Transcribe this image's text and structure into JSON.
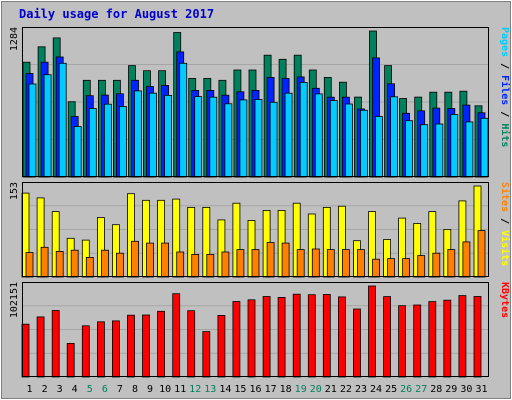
{
  "chart_data": {
    "type": "bar",
    "title": "Daily usage for August 2017",
    "days": [
      "1",
      "2",
      "3",
      "4",
      "5",
      "6",
      "7",
      "8",
      "9",
      "10",
      "11",
      "12",
      "13",
      "14",
      "15",
      "16",
      "17",
      "18",
      "19",
      "20",
      "21",
      "22",
      "23",
      "24",
      "25",
      "26",
      "27",
      "28",
      "29",
      "30",
      "31"
    ],
    "weekend_days": [
      "5",
      "6",
      "12",
      "13",
      "19",
      "20",
      "26",
      "27"
    ],
    "colors": {
      "hits": "#00805c",
      "files": "#0024ff",
      "pages": "#00ccff",
      "visits": "#ffff00",
      "sites": "#ff8000",
      "kbytes": "#ff0000",
      "weekday_tick": "#000000",
      "weekend_tick": "#00805c",
      "panel_bg": "#c0c0c0",
      "frame": "#000000",
      "grid": "#a6a6a6"
    },
    "panels": [
      {
        "id": "hits",
        "ymax_label": "1284",
        "ymax": 1284,
        "right_label": [
          {
            "text": "Pages",
            "color": "#00ccff"
          },
          {
            "text": " / ",
            "color": "#000000"
          },
          {
            "text": "Files",
            "color": "#0024ff"
          },
          {
            "text": " / ",
            "color": "#000000"
          },
          {
            "text": "Hits",
            "color": "#00805c"
          }
        ],
        "series": [
          {
            "name": "Hits",
            "color": "#00805c",
            "values": [
              1010,
              1145,
              1223,
              662,
              850,
              850,
              850,
              980,
              935,
              935,
              1271,
              867,
              867,
              850,
              941,
              941,
              1071,
              1035,
              1071,
              941,
              876,
              834,
              703,
              1284,
              980,
              690,
              703,
              746,
              746,
              755,
              626
            ]
          },
          {
            "name": "Files",
            "color": "#0024ff",
            "values": [
              910,
              1010,
              1055,
              532,
              715,
              720,
              732,
              850,
              796,
              806,
              1100,
              762,
              762,
              719,
              749,
              762,
              876,
              866,
              880,
              780,
              702,
              702,
              599,
              1047,
              820,
              560,
              582,
              606,
              602,
              632,
              565
            ]
          },
          {
            "name": "Pages",
            "color": "#00ccff",
            "values": [
              818,
              900,
              1000,
              444,
              602,
              640,
              620,
              757,
              737,
              718,
              1000,
              707,
              702,
              644,
              678,
              682,
              657,
              737,
              832,
              731,
              672,
              642,
              587,
              532,
              705,
              495,
              460,
              466,
              550,
              485,
              516
            ]
          }
        ]
      },
      {
        "id": "visits",
        "ymax_label": "153",
        "ymax": 153,
        "right_label": [
          {
            "text": "Sites",
            "color": "#ff8000"
          },
          {
            "text": " / ",
            "color": "#000000"
          },
          {
            "text": "Visits",
            "color": "#ffff00"
          }
        ],
        "series": [
          {
            "name": "Visits",
            "color": "#ffff00",
            "values": [
              141,
              133,
              110,
              65,
              62,
              100,
              88,
              140,
              129,
              129,
              131,
              117,
              117,
              96,
              124,
              95,
              112,
              112,
              124,
              106,
              117,
              119,
              61,
              110,
              63,
              99,
              90,
              110,
              80,
              128,
              153
            ]
          },
          {
            "name": "Sites",
            "color": "#ff8000",
            "values": [
              41,
              50,
              43,
              45,
              33,
              45,
              40,
              60,
              57,
              57,
              42,
              38,
              38,
              42,
              46,
              46,
              58,
              57,
              46,
              47,
              46,
              46,
              46,
              30,
              31,
              31,
              36,
              40,
              46,
              59,
              78
            ]
          }
        ]
      },
      {
        "id": "kbytes",
        "ymax_label": "102151",
        "ymax": 102151,
        "right_label": [
          {
            "text": "KBytes",
            "color": "#ff0000"
          }
        ],
        "series": [
          {
            "name": "KBytes",
            "color": "#ff0000",
            "values": [
              59220,
              67430,
              74620,
              37740,
              57440,
              61990,
              62960,
              69350,
              69600,
              73790,
              93530,
              74410,
              50930,
              69120,
              84770,
              86630,
              90360,
              89320,
              93000,
              92400,
              92690,
              89970,
              76320,
              102151,
              90220,
              80070,
              80840,
              84690,
              86240,
              91410,
              90360
            ]
          }
        ]
      }
    ]
  }
}
